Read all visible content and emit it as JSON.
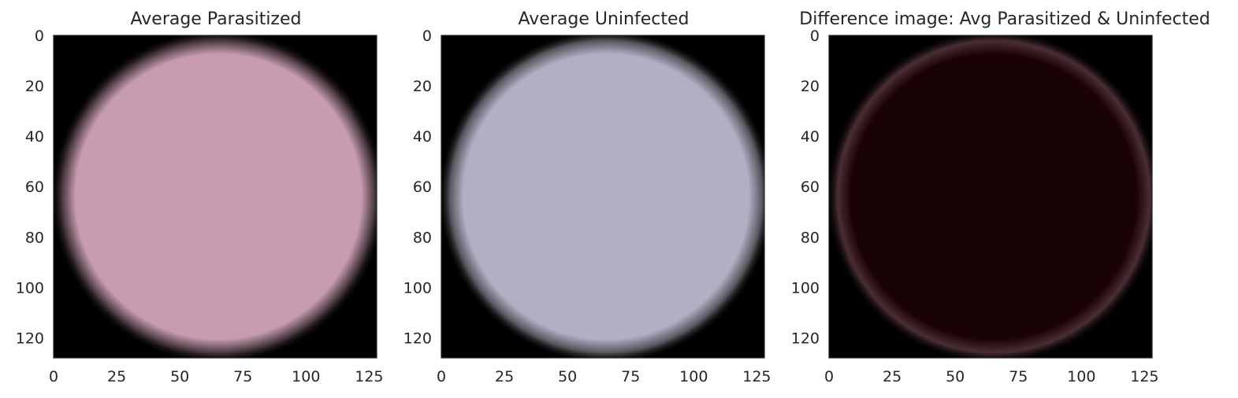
{
  "figure": {
    "panels": [
      {
        "title": "Average Parasitized"
      },
      {
        "title": "Average Uninfected"
      },
      {
        "title": "Difference image: Avg Parasitized & Uninfected"
      }
    ]
  },
  "chart_data": [
    {
      "type": "heatmap",
      "title": "Average Parasitized",
      "x_ticks": [
        0,
        25,
        50,
        75,
        100,
        125
      ],
      "y_ticks": [
        0,
        20,
        40,
        60,
        80,
        100,
        120
      ],
      "xlim": [
        0,
        128
      ],
      "ylim": [
        128,
        0
      ],
      "image_size": [
        128,
        128
      ],
      "cell_color": "#c79cb1",
      "edge_color": "#4a3a40",
      "background_color": "#000000",
      "grid": false
    },
    {
      "type": "heatmap",
      "title": "Average Uninfected",
      "x_ticks": [
        0,
        25,
        50,
        75,
        100,
        125
      ],
      "y_ticks": [
        0,
        20,
        40,
        60,
        80,
        100,
        120
      ],
      "xlim": [
        0,
        128
      ],
      "ylim": [
        128,
        0
      ],
      "image_size": [
        128,
        128
      ],
      "cell_color": "#b4aec4",
      "edge_color": "#5a565f",
      "background_color": "#000000",
      "grid": false
    },
    {
      "type": "heatmap",
      "title": "Difference image: Avg Parasitized & Uninfected",
      "x_ticks": [
        0,
        25,
        50,
        75,
        100,
        125
      ],
      "y_ticks": [
        0,
        20,
        40,
        60,
        80,
        100,
        120
      ],
      "xlim": [
        0,
        128
      ],
      "ylim": [
        128,
        0
      ],
      "image_size": [
        128,
        128
      ],
      "cell_color": "#1a0305",
      "edge_color": "#4a2e34",
      "background_color": "#000000",
      "grid": false
    }
  ]
}
